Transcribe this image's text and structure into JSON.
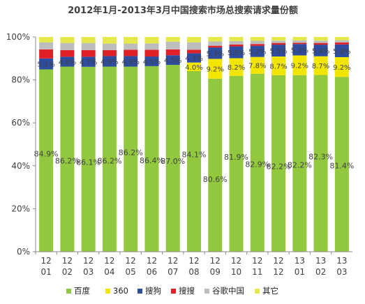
{
  "chart_data": {
    "type": "bar",
    "stacked": true,
    "percent_stacked": true,
    "title": "2012年1月-2013年3月中国搜索市场总搜索请求量份额",
    "categories": [
      "12-01",
      "12-02",
      "12-03",
      "12-04",
      "12-05",
      "12-06",
      "12-07",
      "12-08",
      "12-09",
      "12-10",
      "12-11",
      "12-12",
      "13-01",
      "13-02",
      "13-03"
    ],
    "category_lines": [
      [
        "12",
        "01"
      ],
      [
        "12",
        "02"
      ],
      [
        "12",
        "03"
      ],
      [
        "12",
        "04"
      ],
      [
        "12",
        "05"
      ],
      [
        "12",
        "06"
      ],
      [
        "12",
        "07"
      ],
      [
        "12",
        "08"
      ],
      [
        "12",
        "09"
      ],
      [
        "12",
        "10"
      ],
      [
        "12",
        "11"
      ],
      [
        "12",
        "12"
      ],
      [
        "13",
        "01"
      ],
      [
        "13",
        "02"
      ],
      [
        "13",
        "03"
      ]
    ],
    "ylim": [
      0,
      100
    ],
    "yticks": [
      "0%",
      "20%",
      "40%",
      "60%",
      "80%",
      "100%"
    ],
    "legend_position": "bottom",
    "series": [
      {
        "name": "百度",
        "color": "#92C83E",
        "values": [
          84.9,
          86.2,
          86.1,
          86.2,
          86.2,
          86.4,
          87.0,
          84.1,
          80.6,
          81.9,
          82.9,
          82.2,
          82.2,
          82.3,
          81.4
        ],
        "labels": [
          "84.9%",
          "86.2%",
          "86.1%",
          "86.2%",
          "86.2%",
          "86.4%",
          "87.0%",
          "84.1%",
          "80.6%",
          "81.9%",
          "82.9%",
          "82.2%",
          "82.2%",
          "82.3%",
          "81.4%"
        ]
      },
      {
        "name": "360",
        "color": "#F2E600",
        "values": [
          0,
          0,
          0,
          0,
          0,
          0,
          0,
          4.0,
          9.2,
          8.2,
          7.8,
          8.7,
          9.2,
          8.7,
          9.2
        ],
        "labels": [
          "",
          "",
          "",
          "",
          "",
          "",
          "",
          "4.0%",
          "9.2%",
          "8.2%",
          "7.8%",
          "8.7%",
          "9.2%",
          "8.7%",
          "9.2%"
        ]
      },
      {
        "name": "搜狗",
        "color": "#2E4D9E",
        "values": [
          5.1,
          4.6,
          4.7,
          4.9,
          4.9,
          4.5,
          4.5,
          4.3,
          5.3,
          5.5,
          5.2,
          5.5,
          5.3,
          5.4,
          5.9
        ],
        "labels": [
          "5.1%",
          "4.6%",
          "4.7%",
          "4.9%",
          "4.9%",
          "4.5%",
          "4.5%",
          "4.3%",
          "5.3%",
          "5.5%",
          "5.2%",
          "5.5%",
          "5.3%",
          "5.4%",
          "5.9%"
        ]
      },
      {
        "name": "搜搜",
        "color": "#E01F26",
        "values": [
          4.2,
          3.1,
          3.1,
          2.8,
          2.9,
          3.1,
          2.7,
          1.6,
          0.8,
          0.9,
          0.8,
          0.8,
          0.6,
          0.8,
          0.9
        ],
        "labels": [
          "",
          "",
          "",
          "",
          "",
          "",
          "",
          "",
          "",
          "",
          "",
          "",
          "",
          "",
          ""
        ]
      },
      {
        "name": "谷歌中国",
        "color": "#BDBDBD",
        "values": [
          3.3,
          3.3,
          3.3,
          3.0,
          2.9,
          3.0,
          3.6,
          3.5,
          2.0,
          1.6,
          1.5,
          1.1,
          1.1,
          1.1,
          1.1
        ],
        "labels": [
          "",
          "",
          "",
          "",
          "",
          "",
          "",
          "",
          "",
          "",
          "",
          "",
          "",
          "",
          ""
        ]
      },
      {
        "name": "其它",
        "color": "#E5E84A",
        "values": [
          2.5,
          2.8,
          2.8,
          3.1,
          3.1,
          3.0,
          2.2,
          2.5,
          2.1,
          1.9,
          1.8,
          1.7,
          1.6,
          1.7,
          1.5
        ],
        "labels": [
          "",
          "",
          "",
          "",
          "",
          "",
          "",
          "",
          "",
          "",
          "",
          "",
          "",
          "",
          ""
        ]
      }
    ]
  }
}
